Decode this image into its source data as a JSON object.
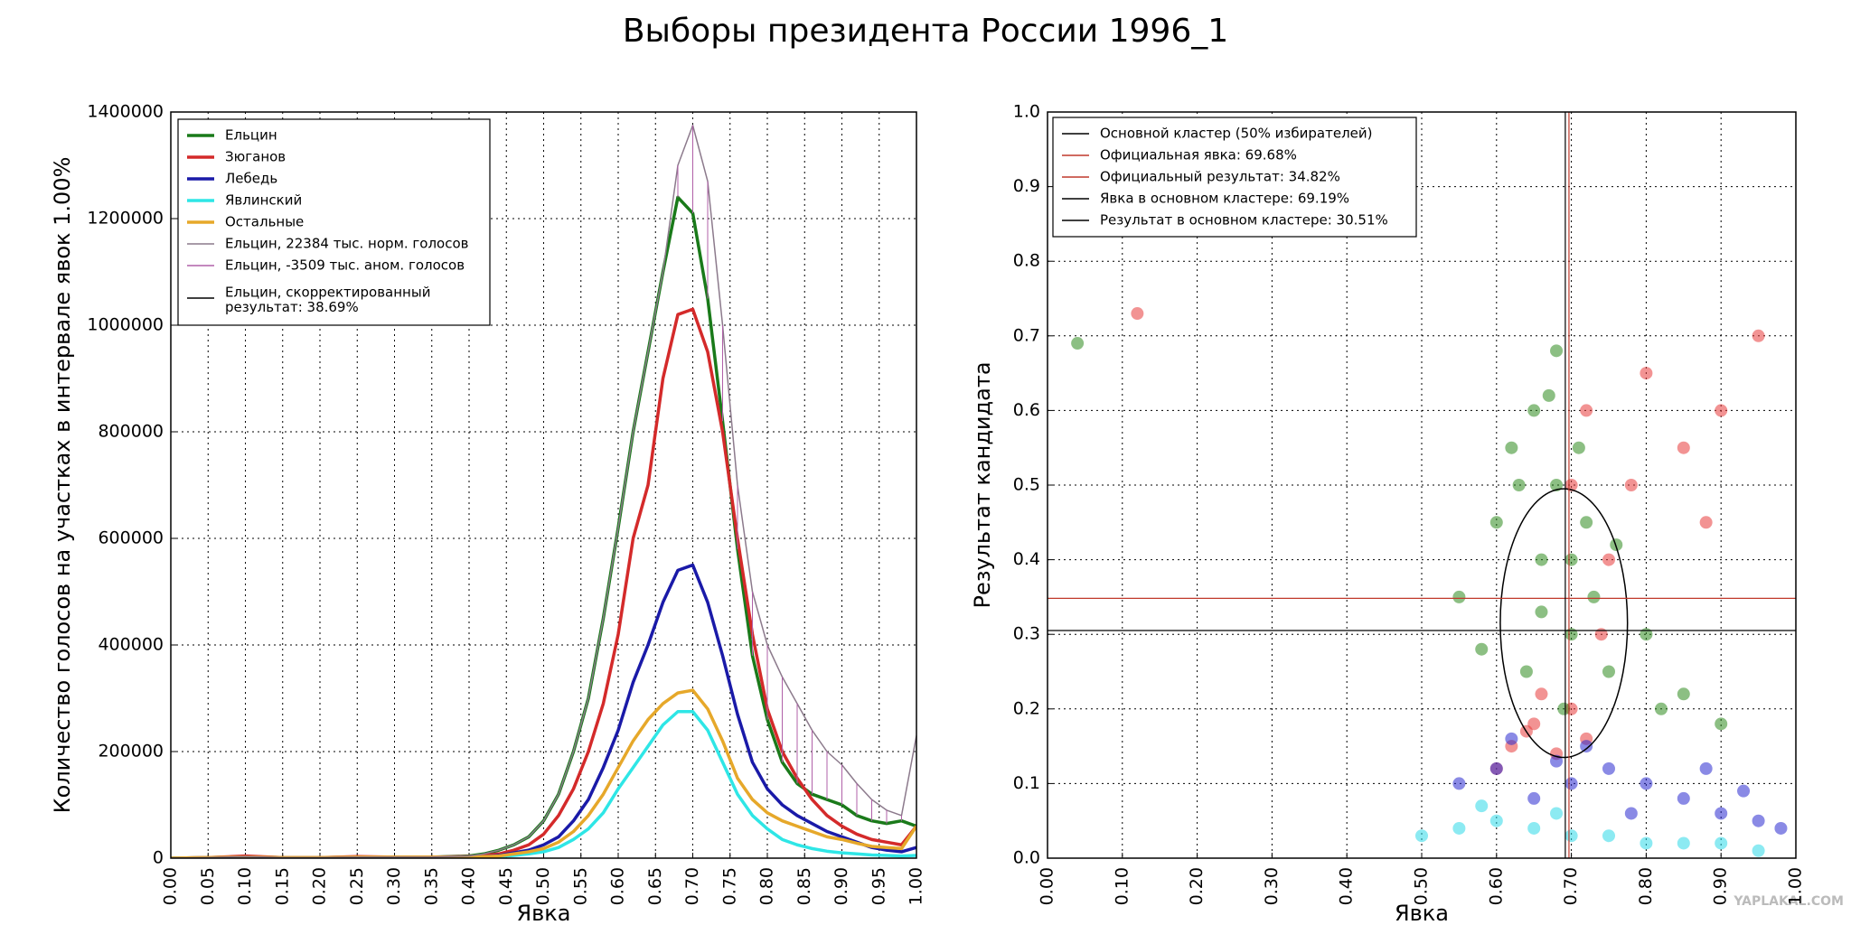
{
  "title": "Выборы президента России 1996_1",
  "watermark": "YAPLAKAL.COM",
  "chart_data": [
    {
      "type": "line",
      "xlabel": "Явка",
      "ylabel": "Количество голосов на участках в интервале явок 1.00%",
      "grid": true,
      "legend": "upper left",
      "xlim": [
        0,
        1
      ],
      "xticks": [
        {
          "value": 0,
          "label": "0.00"
        },
        {
          "value": 0.05,
          "label": "0.05"
        },
        {
          "value": 0.1,
          "label": "0.10"
        },
        {
          "value": 0.15,
          "label": "0.15"
        },
        {
          "value": 0.2,
          "label": "0.20"
        },
        {
          "value": 0.25,
          "label": "0.25"
        },
        {
          "value": 0.3,
          "label": "0.30"
        },
        {
          "value": 0.35,
          "label": "0.35"
        },
        {
          "value": 0.4,
          "label": "0.40"
        },
        {
          "value": 0.45,
          "label": "0.45"
        },
        {
          "value": 0.5,
          "label": "0.50"
        },
        {
          "value": 0.55,
          "label": "0.55"
        },
        {
          "value": 0.6,
          "label": "0.60"
        },
        {
          "value": 0.65,
          "label": "0.65"
        },
        {
          "value": 0.7,
          "label": "0.70"
        },
        {
          "value": 0.75,
          "label": "0.75"
        },
        {
          "value": 0.8,
          "label": "0.80"
        },
        {
          "value": 0.85,
          "label": "0.85"
        },
        {
          "value": 0.9,
          "label": "0.90"
        },
        {
          "value": 0.95,
          "label": "0.95"
        },
        {
          "value": 1,
          "label": "1.00"
        }
      ],
      "ylim": [
        0,
        1400000
      ],
      "yticks": [
        0,
        200000,
        400000,
        600000,
        800000,
        1000000,
        1200000,
        1400000
      ],
      "x": [
        0,
        0.05,
        0.1,
        0.15,
        0.2,
        0.25,
        0.3,
        0.35,
        0.4,
        0.42,
        0.44,
        0.46,
        0.48,
        0.5,
        0.52,
        0.54,
        0.56,
        0.58,
        0.6,
        0.62,
        0.64,
        0.66,
        0.68,
        0.7,
        0.72,
        0.74,
        0.76,
        0.78,
        0.8,
        0.82,
        0.84,
        0.86,
        0.88,
        0.9,
        0.92,
        0.94,
        0.96,
        0.98,
        1
      ],
      "series": [
        {
          "name": "Ельцин",
          "color": "#1a7a1a",
          "values": [
            0,
            1000,
            3000,
            1000,
            1000,
            2000,
            2000,
            2000,
            4000,
            8000,
            15000,
            25000,
            40000,
            70000,
            120000,
            200000,
            300000,
            450000,
            620000,
            800000,
            950000,
            1100000,
            1240000,
            1210000,
            1050000,
            820000,
            580000,
            380000,
            260000,
            180000,
            140000,
            120000,
            110000,
            100000,
            80000,
            70000,
            65000,
            70000,
            60000
          ]
        },
        {
          "name": "Зюганов",
          "color": "#d42a2a",
          "values": [
            0,
            1000,
            4000,
            1000,
            1000,
            3000,
            2000,
            2000,
            3000,
            5000,
            8000,
            15000,
            25000,
            45000,
            80000,
            130000,
            200000,
            290000,
            420000,
            600000,
            700000,
            900000,
            1020000,
            1030000,
            950000,
            800000,
            600000,
            420000,
            280000,
            200000,
            150000,
            110000,
            80000,
            60000,
            45000,
            35000,
            30000,
            25000,
            60000
          ]
        },
        {
          "name": "Лебедь",
          "color": "#1a1aa8",
          "values": [
            0,
            0,
            1000,
            0,
            0,
            1000,
            1000,
            1000,
            2000,
            3000,
            5000,
            10000,
            15000,
            25000,
            40000,
            70000,
            110000,
            170000,
            240000,
            330000,
            400000,
            480000,
            540000,
            550000,
            480000,
            380000,
            270000,
            180000,
            130000,
            100000,
            80000,
            65000,
            50000,
            40000,
            30000,
            20000,
            15000,
            12000,
            20000
          ]
        },
        {
          "name": "Явлинский",
          "color": "#2ee6e6",
          "values": [
            0,
            0,
            0,
            0,
            0,
            1000,
            1000,
            1000,
            1000,
            2000,
            3000,
            5000,
            8000,
            12000,
            20000,
            35000,
            55000,
            85000,
            130000,
            170000,
            210000,
            250000,
            275000,
            275000,
            240000,
            180000,
            120000,
            80000,
            55000,
            35000,
            25000,
            18000,
            13000,
            10000,
            8000,
            6000,
            5000,
            4000,
            5000
          ]
        },
        {
          "name": "Остальные",
          "color": "#e6a82a",
          "values": [
            0,
            1000,
            2000,
            1000,
            1000,
            2000,
            2000,
            2000,
            2000,
            3000,
            4000,
            8000,
            12000,
            18000,
            30000,
            50000,
            80000,
            120000,
            170000,
            220000,
            260000,
            290000,
            310000,
            315000,
            280000,
            220000,
            150000,
            110000,
            85000,
            70000,
            60000,
            50000,
            40000,
            35000,
            28000,
            22000,
            20000,
            18000,
            60000
          ]
        },
        {
          "name": "Ельцин, 22384 тыс. норм. голосов",
          "color": "#8c7a8c",
          "values": [
            0,
            1000,
            3000,
            1000,
            1000,
            2000,
            2000,
            2000,
            4000,
            8000,
            15000,
            25000,
            40000,
            70000,
            120000,
            200000,
            300000,
            450000,
            620000,
            800000,
            950000,
            1100000,
            1300000,
            1375000,
            1270000,
            1000000,
            700000,
            500000,
            400000,
            340000,
            290000,
            240000,
            200000,
            175000,
            140000,
            110000,
            90000,
            80000,
            230000
          ]
        },
        {
          "name": "Ельцин, -3509 тыс. аном. голосов",
          "color": "#b060a8",
          "style": "hatch",
          "values": [
            0,
            1000,
            3000,
            1000,
            1000,
            2000,
            2000,
            2000,
            4000,
            8000,
            15000,
            25000,
            40000,
            70000,
            120000,
            200000,
            300000,
            450000,
            620000,
            800000,
            950000,
            1100000,
            1300000,
            1375000,
            1270000,
            1000000,
            700000,
            500000,
            400000,
            340000,
            290000,
            240000,
            200000,
            175000,
            140000,
            110000,
            90000,
            80000,
            230000
          ]
        },
        {
          "name": "Ельцин, скорректированный\nрезультат: 38.69%",
          "color": "#000000"
        }
      ]
    },
    {
      "type": "scatter",
      "xlabel": "Явка",
      "ylabel": "Результат кандидата",
      "grid": true,
      "legend": "upper left",
      "xlim": [
        0,
        1
      ],
      "xticks": [
        {
          "value": 0,
          "label": "0.00"
        },
        {
          "value": 0.1,
          "label": "0.10"
        },
        {
          "value": 0.2,
          "label": "0.20"
        },
        {
          "value": 0.3,
          "label": "0.30"
        },
        {
          "value": 0.4,
          "label": "0.40"
        },
        {
          "value": 0.5,
          "label": "0.50"
        },
        {
          "value": 0.6,
          "label": "0.60"
        },
        {
          "value": 0.7,
          "label": "0.70"
        },
        {
          "value": 0.8,
          "label": "0.80"
        },
        {
          "value": 0.9,
          "label": "0.90"
        },
        {
          "value": 1,
          "label": "1.00"
        }
      ],
      "ylim": [
        0,
        1
      ],
      "yticks": [
        {
          "value": 0,
          "label": "0.0"
        },
        {
          "value": 0.1,
          "label": "0.1"
        },
        {
          "value": 0.2,
          "label": "0.2"
        },
        {
          "value": 0.3,
          "label": "0.3"
        },
        {
          "value": 0.4,
          "label": "0.4"
        },
        {
          "value": 0.5,
          "label": "0.5"
        },
        {
          "value": 0.6,
          "label": "0.6"
        },
        {
          "value": 0.7,
          "label": "0.7"
        },
        {
          "value": 0.8,
          "label": "0.8"
        },
        {
          "value": 0.9,
          "label": "0.9"
        },
        {
          "value": 1,
          "label": "1.0"
        }
      ],
      "series": [
        {
          "color": "#e83a3a",
          "x": [
            0.62,
            0.65,
            0.68,
            0.7,
            0.72,
            0.75,
            0.78,
            0.85,
            0.9,
            0.95,
            0.8,
            0.6,
            0.66,
            0.72,
            0.88,
            0.7,
            0.74,
            0.64,
            0.12
          ],
          "y": [
            0.15,
            0.18,
            0.14,
            0.2,
            0.16,
            0.4,
            0.5,
            0.55,
            0.6,
            0.7,
            0.65,
            0.12,
            0.22,
            0.6,
            0.45,
            0.5,
            0.3,
            0.17,
            0.73
          ]
        },
        {
          "color": "#2e8b1e",
          "x": [
            0.55,
            0.6,
            0.62,
            0.65,
            0.66,
            0.68,
            0.7,
            0.72,
            0.64,
            0.67,
            0.69,
            0.71,
            0.73,
            0.75,
            0.8,
            0.85,
            0.9,
            0.58,
            0.63,
            0.7,
            0.76,
            0.82,
            0.68,
            0.66,
            0.04
          ],
          "y": [
            0.35,
            0.45,
            0.55,
            0.6,
            0.4,
            0.5,
            0.3,
            0.45,
            0.25,
            0.62,
            0.2,
            0.55,
            0.35,
            0.25,
            0.3,
            0.22,
            0.18,
            0.28,
            0.5,
            0.4,
            0.42,
            0.2,
            0.68,
            0.33,
            0.69
          ]
        },
        {
          "color": "#2a2ad0",
          "x": [
            0.55,
            0.6,
            0.65,
            0.7,
            0.75,
            0.8,
            0.85,
            0.9,
            0.95,
            0.98,
            0.72,
            0.78,
            0.68,
            0.62,
            0.88,
            0.93
          ],
          "y": [
            0.1,
            0.12,
            0.08,
            0.1,
            0.12,
            0.1,
            0.08,
            0.06,
            0.05,
            0.04,
            0.15,
            0.06,
            0.13,
            0.16,
            0.12,
            0.09
          ]
        },
        {
          "color": "#2ed8e8",
          "x": [
            0.5,
            0.55,
            0.6,
            0.65,
            0.7,
            0.75,
            0.8,
            0.85,
            0.9,
            0.95,
            0.58,
            0.68
          ],
          "y": [
            0.03,
            0.04,
            0.05,
            0.04,
            0.03,
            0.03,
            0.02,
            0.02,
            0.02,
            0.01,
            0.07,
            0.06
          ]
        }
      ],
      "ellipse": {
        "label": "Основной кластер (50% избирателей)",
        "color": "#000000",
        "cx": 0.69,
        "cy": 0.315,
        "rx": 0.085,
        "ry": 0.18
      },
      "lines": [
        {
          "label": "Официальная явка: 69.68%",
          "color": "#c0392b",
          "x": 0.6968
        },
        {
          "label": "Официальный результат: 34.82%",
          "color": "#c0392b",
          "y": 0.3482
        },
        {
          "label": "Явка в основном кластере: 69.19%",
          "color": "#000000",
          "x": 0.6919
        },
        {
          "label": "Результат в основном кластере: 30.51%",
          "color": "#000000",
          "y": 0.3051
        }
      ]
    }
  ]
}
